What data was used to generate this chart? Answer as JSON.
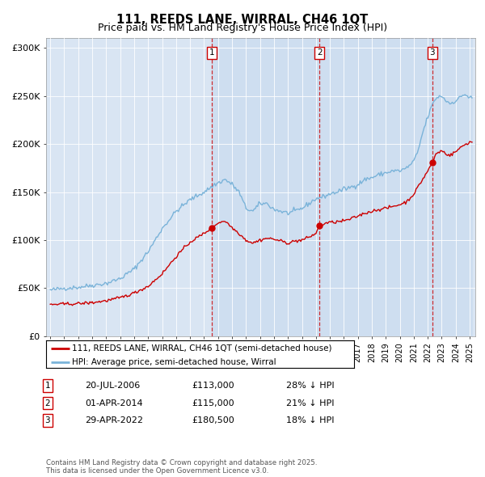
{
  "title": "111, REEDS LANE, WIRRAL, CH46 1QT",
  "subtitle": "Price paid vs. HM Land Registry's House Price Index (HPI)",
  "ylim": [
    0,
    310000
  ],
  "yticks": [
    0,
    50000,
    100000,
    150000,
    200000,
    250000,
    300000
  ],
  "ytick_labels": [
    "£0",
    "£50K",
    "£100K",
    "£150K",
    "£200K",
    "£250K",
    "£300K"
  ],
  "background_color": "#d9e5f3",
  "hpi_color": "#7ab3d9",
  "price_color": "#cc0000",
  "vline_color": "#cc0000",
  "shade_color": "#c5d8ee",
  "sale_years_float": [
    2006.55,
    2014.25,
    2022.33
  ],
  "sale_prices": [
    113000,
    115000,
    180500
  ],
  "sale_labels": [
    "1",
    "2",
    "3"
  ],
  "hpi_anchors_years": [
    1995.0,
    1996.0,
    1997.0,
    1998.0,
    1999.0,
    2000.0,
    2001.0,
    2002.0,
    2003.0,
    2004.0,
    2005.0,
    2006.0,
    2006.8,
    2007.5,
    2008.0,
    2008.5,
    2009.0,
    2009.5,
    2010.0,
    2010.5,
    2011.0,
    2011.5,
    2012.0,
    2012.5,
    2013.0,
    2013.5,
    2014.0,
    2014.5,
    2015.0,
    2015.5,
    2016.0,
    2016.5,
    2017.0,
    2017.5,
    2018.0,
    2018.5,
    2019.0,
    2019.5,
    2020.0,
    2020.5,
    2021.0,
    2021.3,
    2021.6,
    2022.0,
    2022.3,
    2022.6,
    2023.0,
    2023.3,
    2023.6,
    2024.0,
    2024.3,
    2024.6,
    2025.0
  ],
  "hpi_anchors_vals": [
    48000,
    50000,
    51000,
    53000,
    55000,
    60000,
    70000,
    88000,
    112000,
    130000,
    142000,
    150000,
    158000,
    163000,
    158000,
    150000,
    133000,
    130000,
    138000,
    138000,
    132000,
    130000,
    128000,
    130000,
    133000,
    138000,
    143000,
    145000,
    148000,
    150000,
    153000,
    155000,
    158000,
    163000,
    165000,
    168000,
    170000,
    172000,
    172000,
    175000,
    182000,
    192000,
    210000,
    228000,
    240000,
    248000,
    250000,
    245000,
    242000,
    245000,
    248000,
    252000,
    248000
  ],
  "price_anchors_years": [
    1995.0,
    1996.0,
    1997.0,
    1998.0,
    1999.0,
    2000.0,
    2001.0,
    2002.0,
    2003.0,
    2004.0,
    2005.0,
    2006.0,
    2006.55,
    2007.0,
    2007.5,
    2008.0,
    2008.5,
    2009.0,
    2009.5,
    2010.0,
    2010.5,
    2011.0,
    2011.5,
    2012.0,
    2012.5,
    2013.0,
    2013.5,
    2014.0,
    2014.25,
    2014.8,
    2015.5,
    2016.0,
    2016.5,
    2017.0,
    2017.5,
    2018.0,
    2018.5,
    2019.0,
    2019.5,
    2020.0,
    2020.5,
    2021.0,
    2021.5,
    2022.0,
    2022.33,
    2022.6,
    2023.0,
    2023.3,
    2023.6,
    2024.0,
    2024.5,
    2025.0
  ],
  "price_anchors_vals": [
    33000,
    33500,
    34000,
    35000,
    37000,
    40000,
    45000,
    52000,
    65000,
    83000,
    98000,
    107000,
    113000,
    118000,
    120000,
    113000,
    107000,
    100000,
    97000,
    100000,
    102000,
    101000,
    99000,
    97000,
    99000,
    100000,
    103000,
    107000,
    115000,
    118000,
    119000,
    120000,
    122000,
    125000,
    128000,
    130000,
    132000,
    133000,
    135000,
    137000,
    140000,
    148000,
    160000,
    172000,
    180500,
    190000,
    193000,
    190000,
    188000,
    192000,
    198000,
    202000
  ],
  "table_rows": [
    [
      "1",
      "20-JUL-2006",
      "£113,000",
      "28% ↓ HPI"
    ],
    [
      "2",
      "01-APR-2014",
      "£115,000",
      "21% ↓ HPI"
    ],
    [
      "3",
      "29-APR-2022",
      "£180,500",
      "18% ↓ HPI"
    ]
  ],
  "legend_line1": "111, REEDS LANE, WIRRAL, CH46 1QT (semi-detached house)",
  "legend_line2": "HPI: Average price, semi-detached house, Wirral",
  "footer": "Contains HM Land Registry data © Crown copyright and database right 2025.\nThis data is licensed under the Open Government Licence v3.0.",
  "title_fontsize": 10.5,
  "subtitle_fontsize": 9.0,
  "noise_seed": 42,
  "noise_hpi": 1200,
  "noise_price": 800
}
